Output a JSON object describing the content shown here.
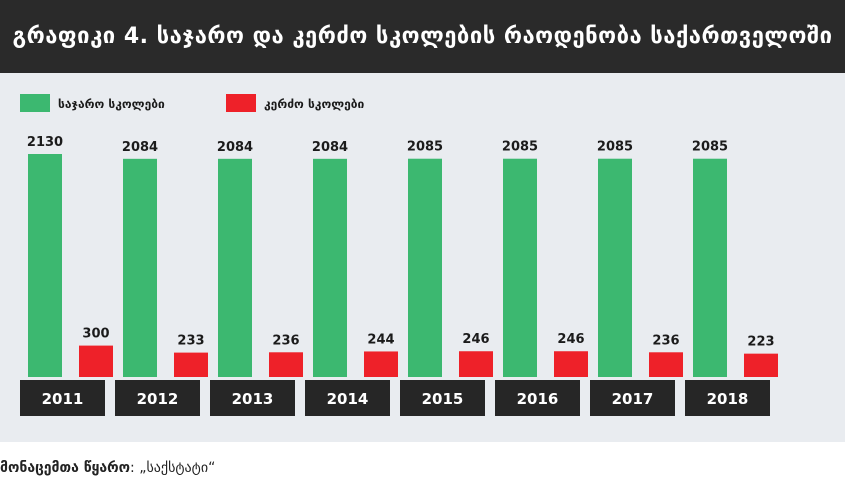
{
  "title": "გრაფიკი 4. საჯარო და კერძო სკოლების რაოდენობა საქართველოში",
  "source": {
    "label": "მონაცემთა წყარო",
    "value": "„საქსტატი“"
  },
  "colors": {
    "public": "#3cb870",
    "private": "#ee2129",
    "year_box": "#262626"
  },
  "chart_data": {
    "type": "bar",
    "title": "გრაფიკი 4. საჯარო და კერძო სკოლების რაოდენობა საქართველოში",
    "categories": [
      "2011",
      "2012",
      "2013",
      "2014",
      "2015",
      "2016",
      "2017",
      "2018"
    ],
    "series": [
      {
        "name": "საჯარო სკოლები",
        "values": [
          2130,
          2084,
          2084,
          2084,
          2085,
          2085,
          2085,
          2085
        ]
      },
      {
        "name": "კერძო სკოლები",
        "values": [
          300,
          233,
          236,
          244,
          246,
          246,
          236,
          223
        ]
      }
    ],
    "xlabel": "",
    "ylabel": "",
    "ylim": [
      0,
      2130
    ],
    "grid": false,
    "legend": "top-left"
  }
}
